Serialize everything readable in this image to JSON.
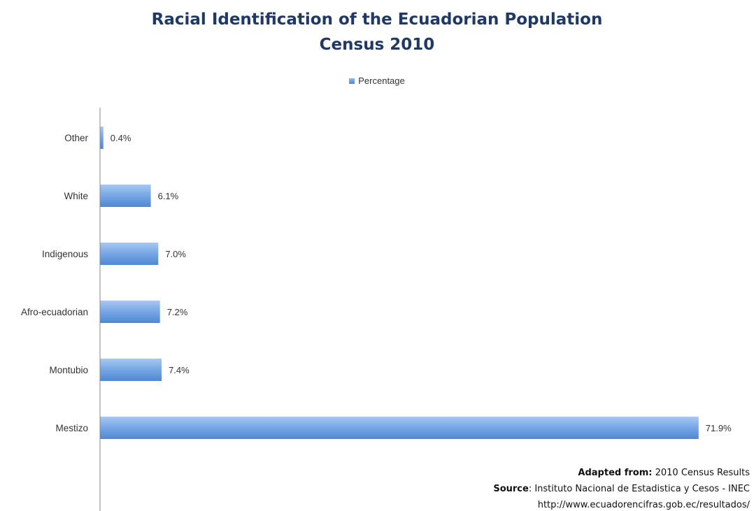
{
  "chart_data": {
    "type": "bar",
    "orientation": "horizontal",
    "title": "Racial Identification of the Ecuadorian Population",
    "subtitle": "Census 2010",
    "legend": {
      "position": "top",
      "entries": [
        "Percentage"
      ]
    },
    "categories": [
      "Other",
      "White",
      "Indigenous",
      "Afro-ecuadorian",
      "Montubio",
      "Mestizo"
    ],
    "series": [
      {
        "name": "Percentage",
        "values": [
          0.4,
          6.1,
          7.0,
          7.2,
          7.4,
          71.9
        ],
        "labels": [
          "0.4%",
          "6.1%",
          "7.0%",
          "7.2%",
          "7.4%",
          "71.9%"
        ]
      }
    ],
    "xlim": [
      0,
      72
    ],
    "grid": false,
    "colors": {
      "bar_light": "#8fb8ec",
      "bar_dark": "#4f87d3",
      "title": "#1f3864"
    }
  },
  "footer": {
    "adapted_label": "Adapted from:",
    "adapted_value": "2010 Census Results",
    "source_label": "Source",
    "source_value": ": Instituto Nacional de Estadistica y Cesos - INEC",
    "url": "http://www.ecuadorencifras.gob.ec/resultados/"
  }
}
